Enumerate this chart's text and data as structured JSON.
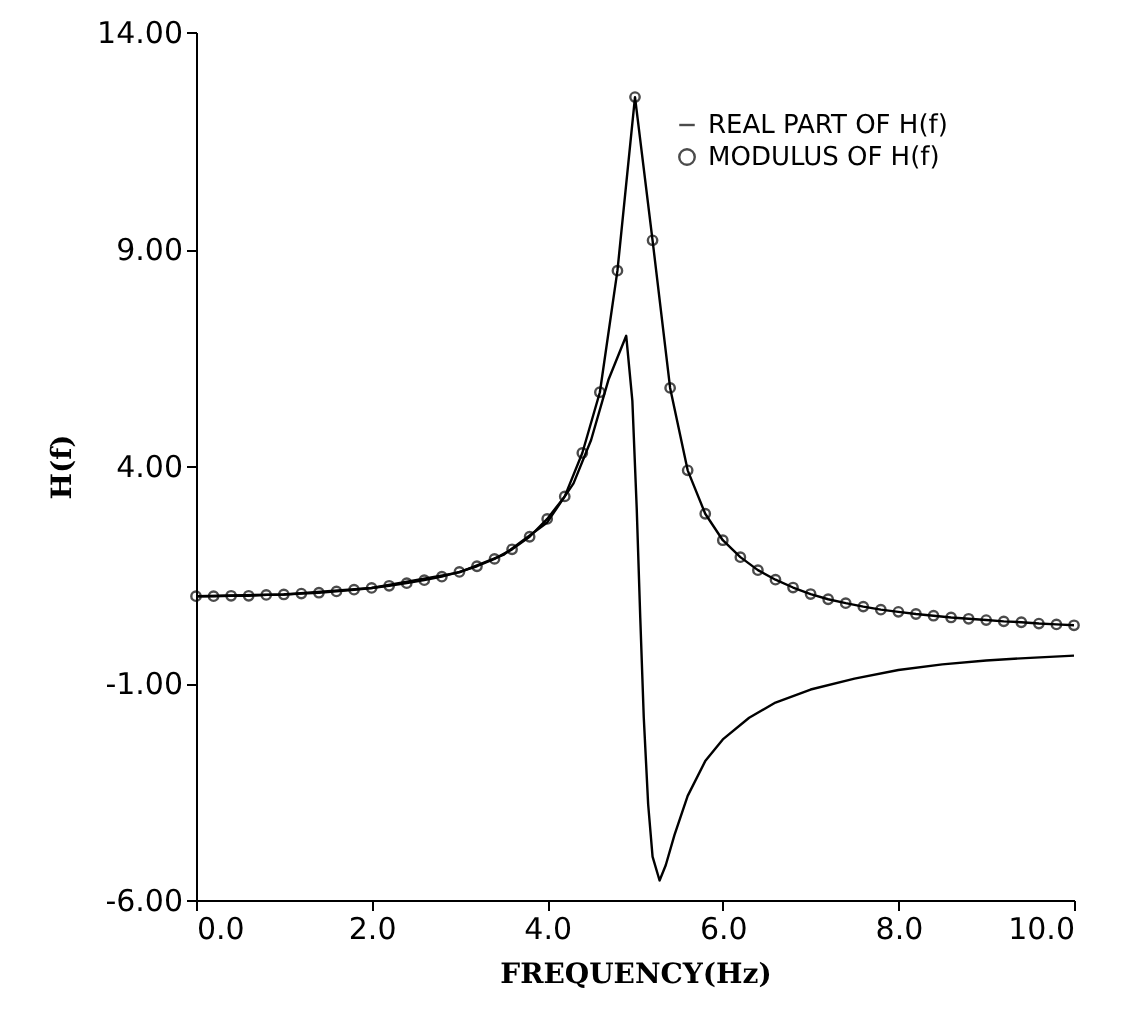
{
  "chart_data": {
    "type": "line",
    "xlabel": "FREQUENCY(Hz)",
    "ylabel": "H(f)",
    "xlim": [
      0,
      10
    ],
    "ylim": [
      -6,
      14
    ],
    "xticks": [
      {
        "value": 0,
        "label": "0.0"
      },
      {
        "value": 2,
        "label": "2.0"
      },
      {
        "value": 4,
        "label": "4.0"
      },
      {
        "value": 6,
        "label": "6.0"
      },
      {
        "value": 8,
        "label": "8.0"
      },
      {
        "value": 10,
        "label": "10.0"
      }
    ],
    "yticks": [
      {
        "value": -6,
        "label": "-6.00"
      },
      {
        "value": -1,
        "label": "-1.00"
      },
      {
        "value": 4,
        "label": "4.00"
      },
      {
        "value": 9,
        "label": "9.00"
      },
      {
        "value": 14,
        "label": "14.00"
      }
    ],
    "grid": false,
    "legend": "top right",
    "line_style": "solid",
    "series": [
      {
        "name": "REAL PART OF H(f)",
        "color": "#000000",
        "marker": "none",
        "x": [
          0,
          1,
          2,
          3,
          3.5,
          4,
          4.3,
          4.5,
          4.7,
          4.9,
          4.97,
          5.02,
          5.06,
          5.1,
          5.15,
          5.2,
          5.28,
          5.35,
          5.45,
          5.6,
          5.8,
          6.0,
          6.3,
          6.6,
          7.0,
          7.5,
          8.0,
          8.5,
          9.0,
          9.5,
          10
        ],
        "values": [
          1.0,
          1.04,
          1.19,
          1.55,
          1.95,
          2.7,
          3.6,
          4.6,
          6.0,
          7.0,
          5.5,
          3.0,
          0.5,
          -1.8,
          -3.8,
          -5.0,
          -5.55,
          -5.2,
          -4.5,
          -3.6,
          -2.8,
          -2.3,
          -1.8,
          -1.45,
          -1.15,
          -0.9,
          -0.7,
          -0.57,
          -0.48,
          -0.42,
          -0.37
        ]
      },
      {
        "name": "MODULUS OF H(f)",
        "color": "#000000",
        "marker": "circle",
        "x": [
          0,
          0.2,
          0.4,
          0.6,
          0.8,
          1.0,
          1.2,
          1.4,
          1.6,
          1.8,
          2.0,
          2.2,
          2.4,
          2.6,
          2.8,
          3.0,
          3.2,
          3.4,
          3.6,
          3.8,
          4.0,
          4.2,
          4.4,
          4.6,
          4.8,
          5.0,
          5.2,
          5.4,
          5.6,
          5.8,
          6.0,
          6.2,
          6.4,
          6.6,
          6.8,
          7.0,
          7.2,
          7.4,
          7.6,
          7.8,
          8.0,
          8.2,
          8.4,
          8.6,
          8.8,
          9.0,
          9.2,
          9.4,
          9.6,
          9.8,
          10.0
        ],
        "values": [
          1.0,
          1.0,
          1.01,
          1.01,
          1.03,
          1.04,
          1.06,
          1.08,
          1.11,
          1.15,
          1.19,
          1.24,
          1.3,
          1.37,
          1.45,
          1.56,
          1.69,
          1.86,
          2.08,
          2.37,
          2.78,
          3.3,
          4.3,
          5.7,
          8.5,
          12.5,
          9.2,
          5.8,
          3.9,
          2.9,
          2.29,
          1.9,
          1.6,
          1.38,
          1.2,
          1.05,
          0.93,
          0.84,
          0.76,
          0.69,
          0.64,
          0.59,
          0.55,
          0.51,
          0.48,
          0.45,
          0.42,
          0.4,
          0.37,
          0.35,
          0.33
        ]
      }
    ]
  }
}
